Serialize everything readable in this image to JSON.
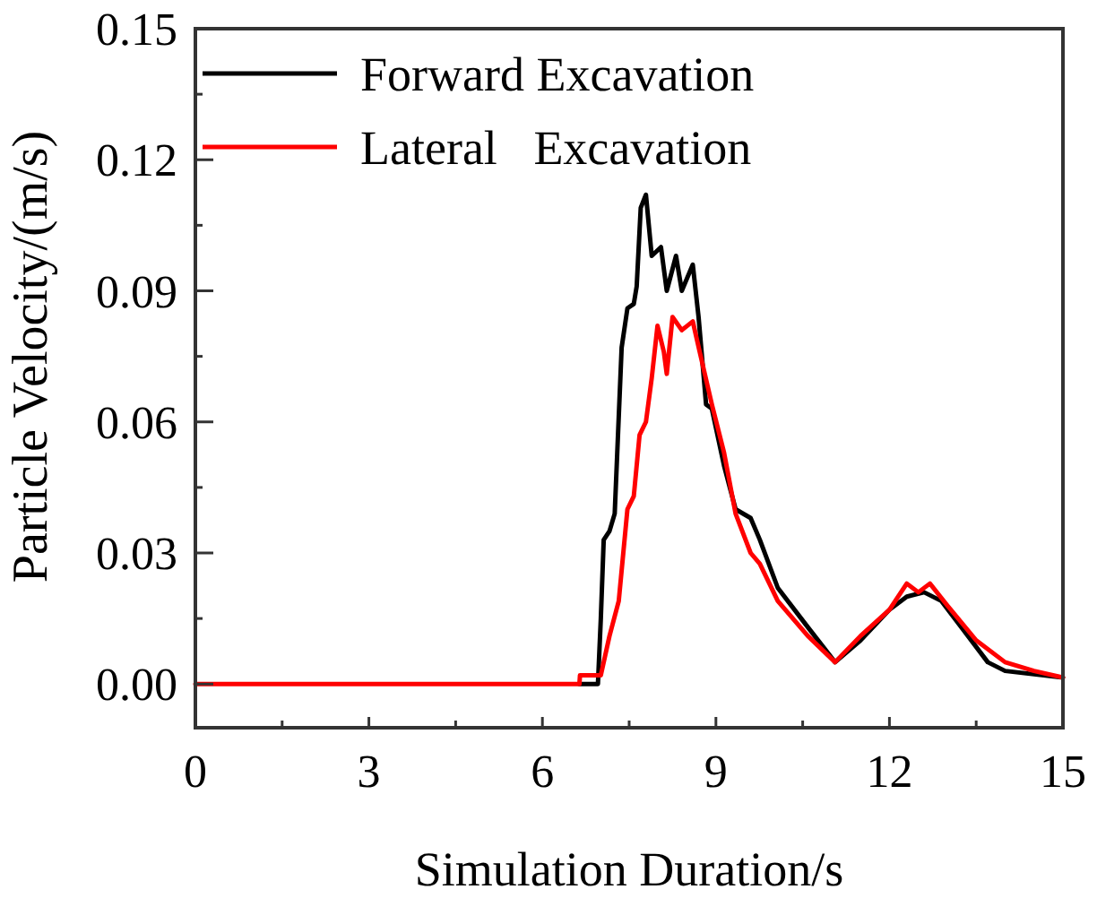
{
  "chart_data": {
    "type": "line",
    "xlabel": "Simulation Duration/s",
    "ylabel": "Particle Velocity/(m/s)",
    "xlim": [
      0,
      15
    ],
    "ylim": [
      -0.01,
      0.15
    ],
    "xticks": [
      0,
      {
        "value": 1.5,
        "label": null
      },
      3,
      {
        "value": 4.5,
        "label": null
      },
      6,
      {
        "value": 7.5,
        "label": null
      },
      9,
      {
        "value": 10.5,
        "label": null
      },
      12,
      {
        "value": 13.5,
        "label": null
      },
      15
    ],
    "yticks": [
      {
        "value": 0,
        "label": "0.00"
      },
      {
        "value": 0.015,
        "label": null
      },
      {
        "value": 0.03,
        "label": "0.03"
      },
      {
        "value": 0.045,
        "label": null
      },
      {
        "value": 0.06,
        "label": "0.06"
      },
      {
        "value": 0.075,
        "label": null
      },
      {
        "value": 0.09,
        "label": "0.09"
      },
      {
        "value": 0.105,
        "label": null
      },
      {
        "value": 0.12,
        "label": "0.12"
      },
      {
        "value": 0.135,
        "label": null
      },
      {
        "value": 0.15,
        "label": "0.15"
      }
    ],
    "legend": "top left",
    "grid": false,
    "line_style": "solid",
    "marker": "none",
    "series": [
      {
        "name": "Forward Excavation",
        "color": "#000000",
        "x": [
          6.64,
          6.96,
          7.01,
          7.06,
          7.16,
          7.25,
          7.37,
          7.47,
          7.58,
          7.63,
          7.7,
          7.79,
          7.89,
          8.05,
          8.15,
          8.31,
          8.41,
          8.6,
          8.7,
          8.83,
          8.93,
          9.14,
          9.34,
          9.6,
          9.76,
          10.07,
          10.59,
          11.06,
          11.5,
          12,
          12.3,
          12.6,
          12.9,
          13.3,
          13.7,
          14,
          15
        ],
        "values": [
          0,
          0,
          0.015,
          0.033,
          0.035,
          0.039,
          0.077,
          0.086,
          0.087,
          0.091,
          0.109,
          0.112,
          0.098,
          0.1,
          0.09,
          0.098,
          0.09,
          0.096,
          0.084,
          0.064,
          0.063,
          0.05,
          0.04,
          0.038,
          0.033,
          0.022,
          0.013,
          0.005,
          0.01,
          0.017,
          0.02,
          0.021,
          0.019,
          0.012,
          0.005,
          0.003,
          0.0015
        ]
      },
      {
        "name": "Lateral   Excavation",
        "color": "#ff0000",
        "x": [
          0,
          6.64,
          6.65,
          7.01,
          7.16,
          7.32,
          7.47,
          7.58,
          7.68,
          7.79,
          7.89,
          7.99,
          8.1,
          8.15,
          8.25,
          8.41,
          8.6,
          8.72,
          8.93,
          9.14,
          9.34,
          9.6,
          9.76,
          10.07,
          10.59,
          11.06,
          11.5,
          12,
          12.3,
          12.5,
          12.7,
          13,
          13.5,
          14,
          14.5,
          15
        ],
        "values": [
          0,
          0,
          0.002,
          0.002,
          0.011,
          0.019,
          0.04,
          0.043,
          0.057,
          0.06,
          0.07,
          0.082,
          0.076,
          0.071,
          0.084,
          0.081,
          0.083,
          0.076,
          0.064,
          0.053,
          0.039,
          0.03,
          0.0275,
          0.019,
          0.011,
          0.005,
          0.011,
          0.017,
          0.023,
          0.021,
          0.023,
          0.018,
          0.01,
          0.005,
          0.003,
          0.0015
        ]
      }
    ]
  }
}
